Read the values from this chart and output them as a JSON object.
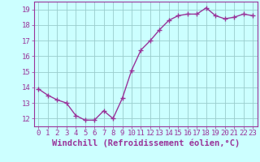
{
  "x": [
    0,
    1,
    2,
    3,
    4,
    5,
    6,
    7,
    8,
    9,
    10,
    11,
    12,
    13,
    14,
    15,
    16,
    17,
    18,
    19,
    20,
    21,
    22,
    23
  ],
  "y": [
    13.9,
    13.5,
    13.2,
    13.0,
    12.2,
    11.9,
    11.9,
    12.5,
    12.0,
    13.3,
    15.1,
    16.4,
    17.0,
    17.7,
    18.3,
    18.6,
    18.7,
    18.7,
    19.1,
    18.6,
    18.4,
    18.5,
    18.7,
    18.6
  ],
  "line_color": "#993399",
  "marker_color": "#993399",
  "background_color": "#ccffff",
  "grid_color": "#99cccc",
  "xlabel": "Windchill (Refroidissement éolien,°C)",
  "xlim": [
    -0.5,
    23.5
  ],
  "ylim": [
    11.5,
    19.5
  ],
  "yticks": [
    12,
    13,
    14,
    15,
    16,
    17,
    18,
    19
  ],
  "xticks": [
    0,
    1,
    2,
    3,
    4,
    5,
    6,
    7,
    8,
    9,
    10,
    11,
    12,
    13,
    14,
    15,
    16,
    17,
    18,
    19,
    20,
    21,
    22,
    23
  ],
  "label_color": "#993399",
  "tick_fontsize": 6.5,
  "xlabel_fontsize": 7.5,
  "linewidth": 1.0,
  "markersize": 2.5
}
